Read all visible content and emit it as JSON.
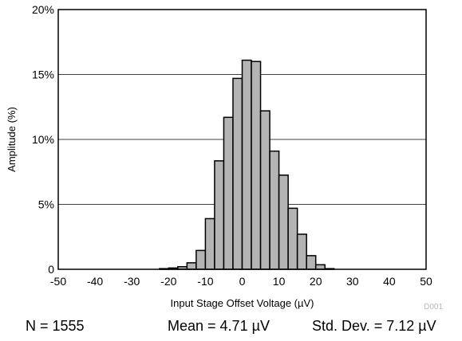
{
  "chart_data": {
    "type": "bar",
    "histogram": true,
    "bin_width": 2.5,
    "bin_centers": [
      -21.25,
      -18.75,
      -16.25,
      -13.75,
      -11.25,
      -8.75,
      -6.25,
      -3.75,
      -1.25,
      1.25,
      3.75,
      6.25,
      8.75,
      11.25,
      13.75,
      16.25,
      18.75,
      21.25,
      23.75,
      26.25
    ],
    "values": [
      0.05,
      0.1,
      0.2,
      0.5,
      1.45,
      3.9,
      8.35,
      11.7,
      14.7,
      16.1,
      16.0,
      12.2,
      9.1,
      7.25,
      4.7,
      2.7,
      1.05,
      0.35,
      0.05,
      0
    ],
    "xlabel": "Input Stage Offset Voltage (µV)",
    "ylabel": "Amplitude (%)",
    "xlim": [
      -50,
      50
    ],
    "ylim": [
      0,
      20
    ],
    "x_ticks": [
      "-50",
      "-40",
      "-30",
      "-20",
      "-10",
      "0",
      "10",
      "20",
      "30",
      "40",
      "50"
    ],
    "y_ticks": [
      "0",
      "5%",
      "10%",
      "15%",
      "20%"
    ],
    "grid": "horizontal",
    "bar_color": "#b4b4b4",
    "edge_color": "#000000",
    "figure_id": "D001"
  },
  "stats": {
    "n": "N = 1555",
    "mean": "Mean = 4.71 µV",
    "std": "Std. Dev. = 7.12 µV"
  }
}
